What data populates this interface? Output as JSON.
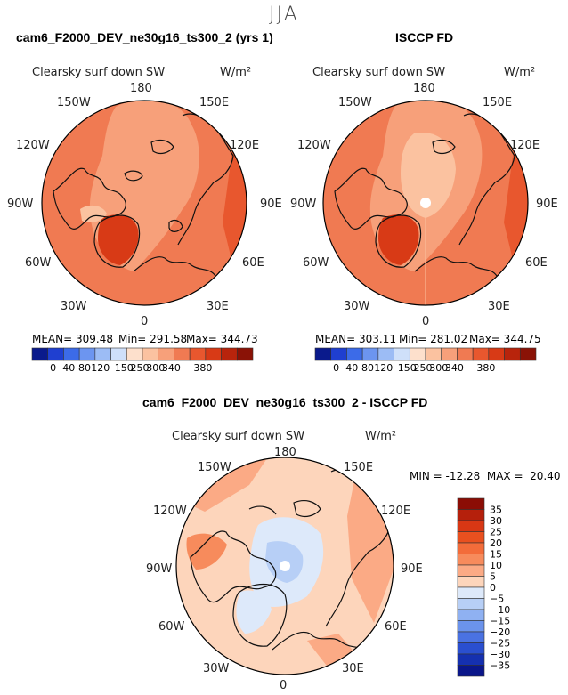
{
  "season": "JJA",
  "top_left": {
    "title": "cam6_F2000_DEV_ne30g16_ts300_2 (yrs 1)",
    "variable": "Clearsky surf down SW",
    "units": "W/m²",
    "stats": {
      "mean_label": "MEAN= 309.48",
      "min_label": "Min= 291.58",
      "max_label": "Max= 344.73"
    }
  },
  "top_right": {
    "title": "ISCCP FD",
    "variable": "Clearsky surf down SW",
    "units": "W/m²",
    "stats": {
      "mean_label": "MEAN= 303.11",
      "min_label": "Min= 281.02",
      "max_label": "Max= 344.75"
    }
  },
  "bottom": {
    "title": "cam6_F2000_DEV_ne30g16_ts300_2 - ISCCP FD",
    "variable": "Clearsky surf down SW",
    "units": "W/m²",
    "minmax_label": "MIN = -12.28  MAX =  20.40"
  },
  "longitude_labels": [
    "180",
    "150E",
    "120E",
    "90E",
    "60E",
    "30E",
    "0",
    "30W",
    "60W",
    "90W",
    "120W",
    "150W"
  ],
  "abs_colorbar": {
    "ticks": [
      "0",
      "40",
      "80",
      "120",
      "150",
      "250",
      "300",
      "340",
      "380"
    ],
    "colors": [
      "#0a1a8c",
      "#1f3fd0",
      "#3c6be8",
      "#6c95f0",
      "#9cbcf5",
      "#cfe0fa",
      "#fde0cc",
      "#fbc2a0",
      "#f7a07a",
      "#f07a52",
      "#e8572e",
      "#d83a16",
      "#b8240c",
      "#8a1206"
    ]
  },
  "diff_colorbar": {
    "ticks": [
      "35",
      "30",
      "25",
      "20",
      "15",
      "10",
      "5",
      "0",
      "−5",
      "−10",
      "−15",
      "−20",
      "−25",
      "−30",
      "−35"
    ],
    "colors": [
      "#8b0d05",
      "#b5200c",
      "#d83714",
      "#e9501f",
      "#f36c3a",
      "#f78b5c",
      "#fbaa85",
      "#fdd5bb",
      "#dde9fa",
      "#b7cff6",
      "#8fb1f2",
      "#6b93ec",
      "#4a72e2",
      "#2a4fd0",
      "#1530b0",
      "#0a168a"
    ]
  },
  "colors": {
    "land_line": "#111111",
    "pole_hole": "#ffffff"
  }
}
